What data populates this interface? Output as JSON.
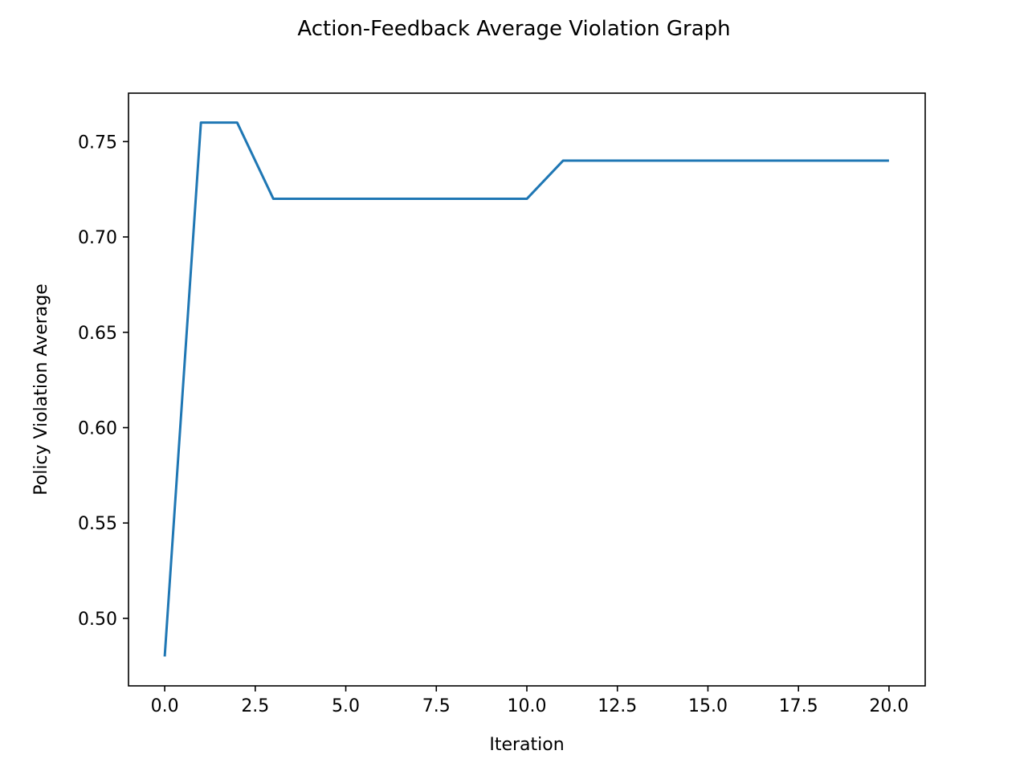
{
  "chart_data": {
    "type": "line",
    "title": "Action-Feedback Average Violation Graph",
    "xlabel": "Iteration",
    "ylabel": "Policy Violation Average",
    "xlim": [
      -1,
      21
    ],
    "ylim": [
      0.4646,
      0.7754
    ],
    "x_ticks": [
      0.0,
      2.5,
      5.0,
      7.5,
      10.0,
      12.5,
      15.0,
      17.5,
      20.0
    ],
    "x_tick_labels": [
      "0.0",
      "2.5",
      "5.0",
      "7.5",
      "10.0",
      "12.5",
      "15.0",
      "17.5",
      "20.0"
    ],
    "y_ticks": [
      0.5,
      0.55,
      0.6,
      0.65,
      0.7,
      0.75
    ],
    "y_tick_labels": [
      "0.50",
      "0.55",
      "0.60",
      "0.65",
      "0.70",
      "0.75"
    ],
    "grid": false,
    "series": [
      {
        "color": "#1f77b4",
        "x": [
          0,
          1,
          2,
          3,
          4,
          5,
          6,
          7,
          8,
          9,
          10,
          11,
          12,
          13,
          14,
          15,
          16,
          17,
          18,
          19,
          20
        ],
        "values": [
          0.48,
          0.76,
          0.76,
          0.72,
          0.72,
          0.72,
          0.72,
          0.72,
          0.72,
          0.72,
          0.72,
          0.74,
          0.74,
          0.74,
          0.74,
          0.74,
          0.74,
          0.74,
          0.74,
          0.74,
          0.74
        ]
      }
    ]
  }
}
